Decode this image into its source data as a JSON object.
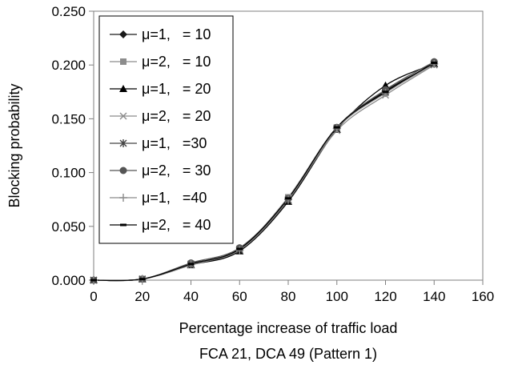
{
  "chart_data": {
    "type": "line",
    "title": "",
    "caption": "FCA 21, DCA 49 (Pattern 1)",
    "xlabel": "Percentage increase of traffic load",
    "ylabel": "Blocking probability",
    "xlim": [
      0,
      160
    ],
    "ylim": [
      0,
      0.25
    ],
    "x_ticks": [
      "0",
      "20",
      "40",
      "60",
      "80",
      "100",
      "120",
      "140",
      "160"
    ],
    "y_ticks": [
      "0.000",
      "0.050",
      "0.100",
      "0.150",
      "0.200",
      "0.250"
    ],
    "grid": false,
    "legend_position": "top-left",
    "x": [
      0,
      20,
      40,
      60,
      80,
      100,
      120,
      140
    ],
    "series": [
      {
        "name": "μ=1,   = 10",
        "marker": "diamond",
        "color": "#1a1a1a",
        "values": [
          0.0,
          0.001,
          0.015,
          0.028,
          0.075,
          0.141,
          0.176,
          0.201
        ]
      },
      {
        "name": "μ=2,   = 10",
        "marker": "square",
        "color": "#8c8c8c",
        "values": [
          0.0,
          0.001,
          0.015,
          0.029,
          0.077,
          0.142,
          0.174,
          0.202
        ]
      },
      {
        "name": "μ=1,   = 20",
        "marker": "triangle",
        "color": "#000000",
        "values": [
          0.0,
          0.001,
          0.014,
          0.027,
          0.073,
          0.14,
          0.181,
          0.201
        ]
      },
      {
        "name": "μ=2,   = 20",
        "marker": "x",
        "color": "#8c8c8c",
        "values": [
          0.0,
          0.001,
          0.014,
          0.029,
          0.075,
          0.139,
          0.172,
          0.2
        ]
      },
      {
        "name": "μ=1,   =30",
        "marker": "star",
        "color": "#444444",
        "values": [
          0.0,
          0.001,
          0.015,
          0.028,
          0.074,
          0.141,
          0.175,
          0.201
        ]
      },
      {
        "name": "μ=2,   = 30",
        "marker": "circle",
        "color": "#555555",
        "values": [
          0.0,
          0.001,
          0.016,
          0.03,
          0.076,
          0.142,
          0.177,
          0.203
        ]
      },
      {
        "name": "μ=1,   =40",
        "marker": "plus",
        "color": "#8c8c8c",
        "values": [
          0.0,
          0.001,
          0.015,
          0.028,
          0.075,
          0.141,
          0.174,
          0.201
        ]
      },
      {
        "name": "μ=2,   = 40",
        "marker": "dash",
        "color": "#000000",
        "values": [
          0.0,
          0.001,
          0.015,
          0.029,
          0.076,
          0.142,
          0.175,
          0.202
        ]
      }
    ]
  }
}
